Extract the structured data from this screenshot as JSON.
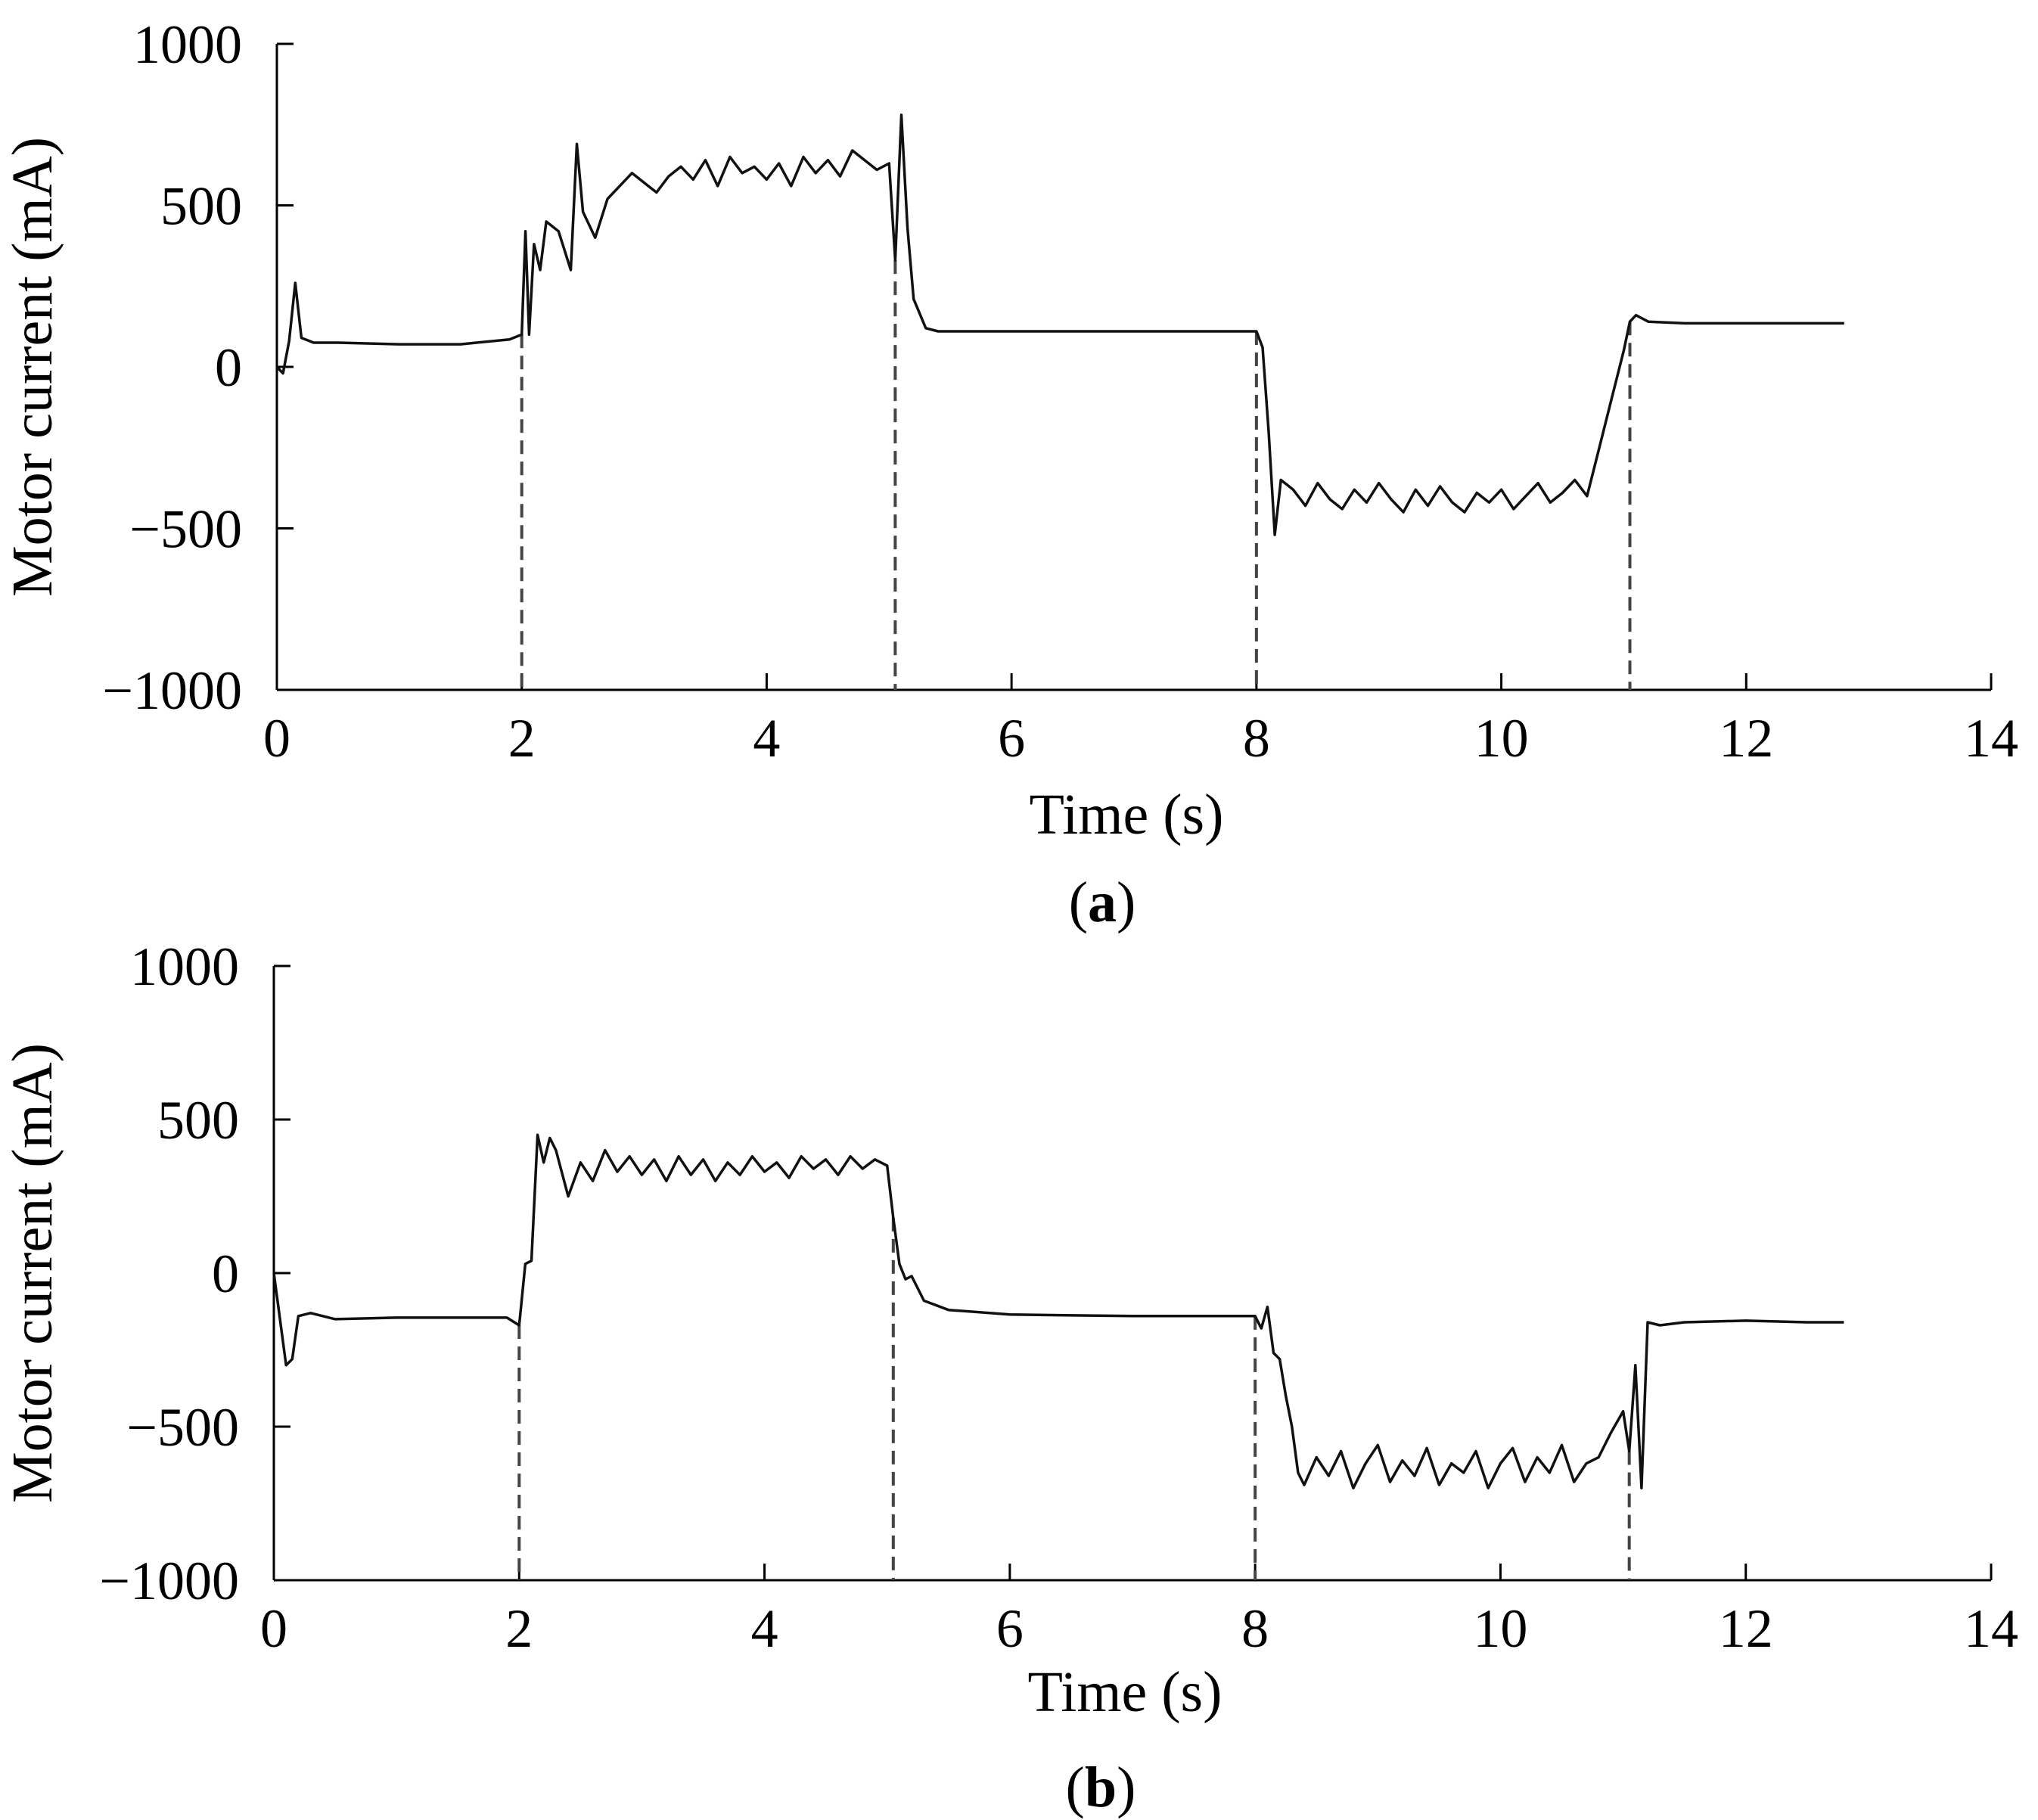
{
  "chart_data": [
    {
      "type": "line",
      "panel_label": "a",
      "xlabel": "Time (s)",
      "ylabel": "Motor current (mA)",
      "xlim": [
        0,
        14
      ],
      "ylim": [
        -1000,
        1000
      ],
      "xticks": [
        "0",
        "2",
        "4",
        "6",
        "8",
        "10",
        "12",
        "14"
      ],
      "yticks": [
        "1000",
        "500",
        "0",
        "−500",
        "−1000"
      ],
      "grid": false,
      "markers": [
        2,
        5.05,
        8,
        11.05
      ],
      "series": [
        {
          "x": [
            0,
            0.05,
            0.1,
            0.15,
            0.2,
            0.3,
            0.5,
            1.0,
            1.5,
            1.9,
            2.0,
            2.03,
            2.06,
            2.1,
            2.15,
            2.2,
            2.3,
            2.4,
            2.45,
            2.5,
            2.6,
            2.7,
            2.8,
            2.9,
            3.0,
            3.1,
            3.2,
            3.3,
            3.4,
            3.5,
            3.6,
            3.7,
            3.8,
            3.9,
            4.0,
            4.1,
            4.2,
            4.3,
            4.4,
            4.5,
            4.6,
            4.7,
            4.8,
            4.9,
            5.0,
            5.05,
            5.1,
            5.15,
            5.2,
            5.3,
            5.4,
            5.5,
            6.0,
            7.0,
            7.5,
            8.0,
            8.05,
            8.1,
            8.15,
            8.2,
            8.3,
            8.4,
            8.5,
            8.6,
            8.7,
            8.8,
            8.9,
            9.0,
            9.1,
            9.2,
            9.3,
            9.4,
            9.5,
            9.6,
            9.7,
            9.8,
            9.9,
            10.0,
            10.1,
            10.2,
            10.3,
            10.4,
            10.5,
            10.6,
            10.7,
            10.8,
            10.9,
            11.0,
            11.05,
            11.1,
            11.2,
            11.5,
            12.0,
            12.5,
            12.8
          ],
          "values": [
            0,
            -20,
            80,
            260,
            90,
            75,
            75,
            70,
            70,
            85,
            100,
            420,
            100,
            380,
            300,
            450,
            420,
            300,
            690,
            480,
            400,
            520,
            560,
            600,
            570,
            540,
            590,
            620,
            580,
            640,
            560,
            650,
            600,
            620,
            580,
            630,
            560,
            650,
            600,
            640,
            590,
            670,
            640,
            610,
            630,
            330,
            780,
            430,
            210,
            120,
            110,
            110,
            110,
            110,
            110,
            110,
            60,
            -200,
            -520,
            -350,
            -380,
            -430,
            -360,
            -410,
            -440,
            -380,
            -420,
            -360,
            -410,
            -450,
            -380,
            -430,
            -370,
            -420,
            -450,
            -390,
            -420,
            -380,
            -440,
            -400,
            -360,
            -420,
            -390,
            -350,
            -400,
            -250,
            -100,
            50,
            140,
            160,
            140,
            135,
            135,
            135,
            135
          ]
        }
      ]
    },
    {
      "type": "line",
      "panel_label": "b",
      "xlabel": "Time (s)",
      "ylabel": "Motor current (mA)",
      "xlim": [
        0,
        14
      ],
      "ylim": [
        -1000,
        1000
      ],
      "xticks": [
        "0",
        "2",
        "4",
        "6",
        "8",
        "10",
        "12",
        "14"
      ],
      "yticks": [
        "1000",
        "500",
        "0",
        "−500",
        "−1000"
      ],
      "grid": false,
      "markers": [
        2,
        5.05,
        8,
        11.05
      ],
      "series": [
        {
          "x": [
            0,
            0.05,
            0.1,
            0.15,
            0.2,
            0.3,
            0.5,
            1.0,
            1.5,
            1.9,
            2.0,
            2.05,
            2.1,
            2.15,
            2.2,
            2.25,
            2.3,
            2.4,
            2.5,
            2.6,
            2.7,
            2.8,
            2.9,
            3.0,
            3.1,
            3.2,
            3.3,
            3.4,
            3.5,
            3.6,
            3.7,
            3.8,
            3.9,
            4.0,
            4.1,
            4.2,
            4.3,
            4.4,
            4.5,
            4.6,
            4.7,
            4.8,
            4.9,
            5.0,
            5.05,
            5.1,
            5.15,
            5.2,
            5.3,
            5.5,
            6.0,
            7.0,
            7.5,
            8.0,
            8.05,
            8.1,
            8.15,
            8.2,
            8.25,
            8.3,
            8.35,
            8.4,
            8.5,
            8.6,
            8.7,
            8.8,
            8.9,
            9.0,
            9.1,
            9.2,
            9.3,
            9.4,
            9.5,
            9.6,
            9.7,
            9.8,
            9.9,
            10.0,
            10.1,
            10.2,
            10.3,
            10.4,
            10.5,
            10.6,
            10.7,
            10.8,
            10.9,
            11.0,
            11.05,
            11.1,
            11.15,
            11.2,
            11.3,
            11.5,
            12.0,
            12.5,
            12.8
          ],
          "values": [
            0,
            -150,
            -300,
            -280,
            -140,
            -130,
            -150,
            -145,
            -145,
            -145,
            -170,
            30,
            40,
            450,
            360,
            440,
            400,
            250,
            360,
            300,
            400,
            330,
            380,
            320,
            370,
            300,
            380,
            320,
            370,
            300,
            360,
            320,
            380,
            330,
            360,
            310,
            380,
            340,
            370,
            320,
            380,
            340,
            370,
            350,
            180,
            30,
            -20,
            -10,
            -90,
            -120,
            -135,
            -140,
            -140,
            -140,
            -180,
            -110,
            -260,
            -280,
            -400,
            -500,
            -650,
            -690,
            -600,
            -660,
            -580,
            -700,
            -620,
            -560,
            -680,
            -610,
            -660,
            -570,
            -690,
            -620,
            -650,
            -580,
            -700,
            -620,
            -570,
            -680,
            -600,
            -650,
            -560,
            -680,
            -620,
            -600,
            -520,
            -450,
            -580,
            -300,
            -700,
            -160,
            -170,
            -160,
            -155,
            -160,
            -160
          ]
        }
      ]
    }
  ]
}
